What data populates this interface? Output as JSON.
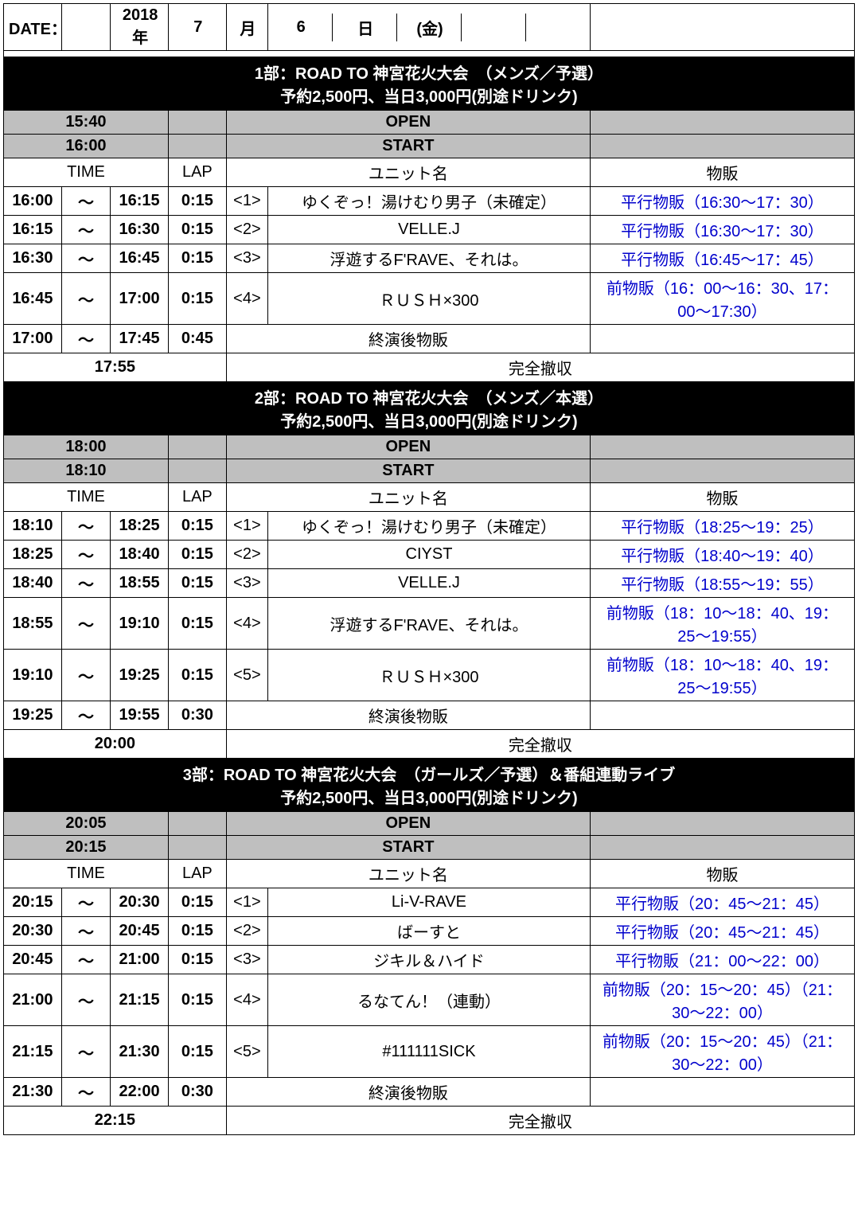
{
  "date": {
    "label": "DATE：",
    "year": "2018年",
    "month": "7",
    "month_label": "月",
    "day": "6",
    "day_label": "日",
    "weekday": "(金)"
  },
  "labels": {
    "open": "OPEN",
    "start": "START",
    "time": "TIME",
    "lap": "LAP",
    "unit": "ユニット名",
    "merch": "物販",
    "post_merch": "終演後物販",
    "teardown": "完全撤収",
    "tilde": "〜"
  },
  "sections": [
    {
      "title": "1部：ROAD TO 神宮花火大会　（メンズ／予選）",
      "price": "予約2,500円、当日3,000円(別途ドリンク)",
      "open_time": "15:40",
      "start_time": "16:00",
      "rows": [
        {
          "t1": "16:00",
          "t2": "16:15",
          "lap": "0:15",
          "n": "<1>",
          "unit": "ゆくぞっ！湯けむり男子（未確定）",
          "merch": "平行物販（16:30〜17：30）",
          "blue": true
        },
        {
          "t1": "16:15",
          "t2": "16:30",
          "lap": "0:15",
          "n": "<2>",
          "unit": "VELLE.J",
          "merch": "平行物販（16:30〜17：30）",
          "blue": true
        },
        {
          "t1": "16:30",
          "t2": "16:45",
          "lap": "0:15",
          "n": "<3>",
          "unit": "浮遊するF'RAVE、それは。",
          "merch": "平行物販（16:45〜17：45）",
          "blue": true
        },
        {
          "t1": "16:45",
          "t2": "17:00",
          "lap": "0:15",
          "n": "<4>",
          "unit": "ＲＵＳＨ×300",
          "merch": "前物販（16：00〜16：30、17：00〜17:30）",
          "blue": true
        },
        {
          "t1": "17:00",
          "t2": "17:45",
          "lap": "0:45",
          "post": true
        }
      ],
      "teardown_time": "17:55"
    },
    {
      "title": "2部：ROAD TO 神宮花火大会　（メンズ／本選）",
      "price": "予約2,500円、当日3,000円(別途ドリンク)",
      "open_time": "18:00",
      "start_time": "18:10",
      "rows": [
        {
          "t1": "18:10",
          "t2": "18:25",
          "lap": "0:15",
          "n": "<1>",
          "unit": "ゆくぞっ！湯けむり男子（未確定）",
          "merch": "平行物販（18:25〜19：25）",
          "blue": true
        },
        {
          "t1": "18:25",
          "t2": "18:40",
          "lap": "0:15",
          "n": "<2>",
          "unit": "CIYST",
          "merch": "平行物販（18:40〜19：40）",
          "blue": true
        },
        {
          "t1": "18:40",
          "t2": "18:55",
          "lap": "0:15",
          "n": "<3>",
          "unit": "VELLE.J",
          "merch": "平行物販（18:55〜19：55）",
          "blue": true
        },
        {
          "t1": "18:55",
          "t2": "19:10",
          "lap": "0:15",
          "n": "<4>",
          "unit": "浮遊するF'RAVE、それは。",
          "merch": "前物販（18：10〜18：40、19：25〜19:55）",
          "blue": true
        },
        {
          "t1": "19:10",
          "t2": "19:25",
          "lap": "0:15",
          "n": "<5>",
          "unit": "ＲＵＳＨ×300",
          "merch": "前物販（18：10〜18：40、19：25〜19:55）",
          "blue": true
        },
        {
          "t1": "19:25",
          "t2": "19:55",
          "lap": "0:30",
          "post": true
        }
      ],
      "teardown_time": "20:00"
    },
    {
      "title": "3部：ROAD TO 神宮花火大会　（ガールズ／予選）＆番組連動ライブ",
      "price": "予約2,500円、当日3,000円(別途ドリンク)",
      "open_time": "20:05",
      "start_time": "20:15",
      "rows": [
        {
          "t1": "20:15",
          "t2": "20:30",
          "lap": "0:15",
          "n": "<1>",
          "unit": "Li-V-RAVE",
          "merch": "平行物販（20：45〜21：45）",
          "blue": true
        },
        {
          "t1": "20:30",
          "t2": "20:45",
          "lap": "0:15",
          "n": "<2>",
          "unit": "ばーすと",
          "merch": "平行物販（20：45〜21：45）",
          "blue": true
        },
        {
          "t1": "20:45",
          "t2": "21:00",
          "lap": "0:15",
          "n": "<3>",
          "unit": "ジキル＆ハイド",
          "merch": "平行物販（21：00〜22：00）",
          "blue": true
        },
        {
          "t1": "21:00",
          "t2": "21:15",
          "lap": "0:15",
          "n": "<4>",
          "unit": "るなてん！（連動）",
          "merch": "前物販（20：15〜20：45）（21：30〜22：00）",
          "blue": true
        },
        {
          "t1": "21:15",
          "t2": "21:30",
          "lap": "0:15",
          "n": "<5>",
          "unit": "#111111SICK",
          "merch": "前物販（20：15〜20：45）（21：30〜22：00）",
          "blue": true
        },
        {
          "t1": "21:30",
          "t2": "22:00",
          "lap": "0:30",
          "post": true
        }
      ],
      "teardown_time": "22:15"
    }
  ],
  "columns": {
    "t1": 62,
    "tilde": 52,
    "t2": 62,
    "lap": 62,
    "n": 44,
    "unit": 340,
    "merch": 280
  }
}
